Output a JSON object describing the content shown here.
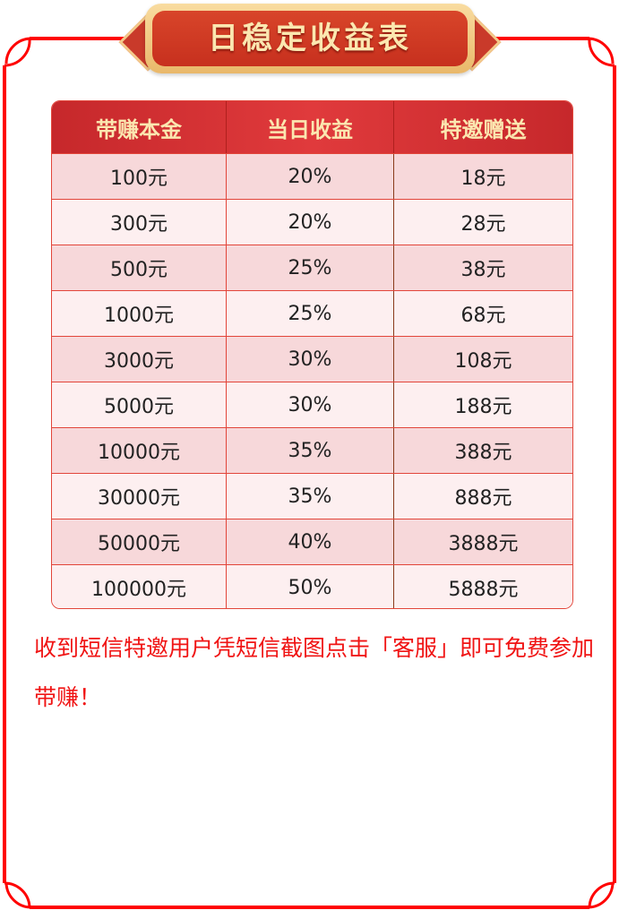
{
  "title": "日稳定收益表",
  "colors": {
    "frame": "#ff0000",
    "header_bg": "#d8302f",
    "header_text": "#fbe7b0",
    "row_odd": "#f7d8da",
    "row_even": "#fdeff0",
    "note": "#f01414"
  },
  "table": {
    "headers": [
      "带赚本金",
      "当日收益",
      "特邀赠送"
    ],
    "rows": [
      [
        "100元",
        "20%",
        "18元"
      ],
      [
        "300元",
        "20%",
        "28元"
      ],
      [
        "500元",
        "25%",
        "38元"
      ],
      [
        "1000元",
        "25%",
        "68元"
      ],
      [
        "3000元",
        "30%",
        "108元"
      ],
      [
        "5000元",
        "30%",
        "188元"
      ],
      [
        "10000元",
        "35%",
        "388元"
      ],
      [
        "30000元",
        "35%",
        "888元"
      ],
      [
        "50000元",
        "40%",
        "3888元"
      ],
      [
        "100000元",
        "50%",
        "5888元"
      ]
    ]
  },
  "note": "收到短信特邀用户凭短信截图点击「客服」即可免费参加带赚！"
}
